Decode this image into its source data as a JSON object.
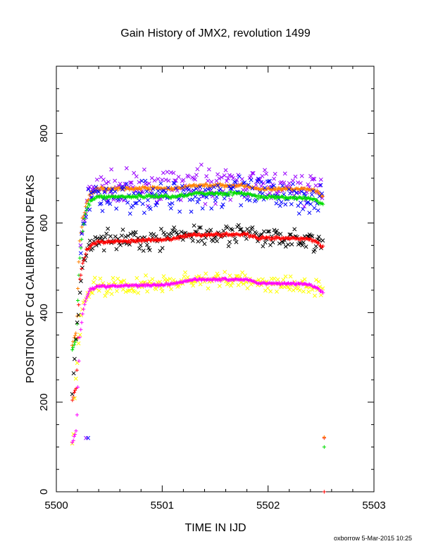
{
  "chart_data": {
    "type": "scatter",
    "title": "Gain History of JMX2, revolution 1499",
    "xlabel": "TIME IN IJD",
    "ylabel": "POSITION OF Cd CALIBRATION PEAKS",
    "xlim": [
      5500,
      5503
    ],
    "ylim": [
      0,
      950
    ],
    "xticks": [
      5500,
      5501,
      5502,
      5503
    ],
    "yticks": [
      0,
      200,
      400,
      600,
      800
    ],
    "grid": false,
    "legend": "none",
    "series": [
      {
        "color": "#9900ff",
        "marker": "x",
        "points": [
          [
            5500.23,
            560
          ],
          [
            5500.26,
            600
          ],
          [
            5500.3,
            650
          ],
          [
            5500.35,
            675
          ],
          [
            5500.5,
            680
          ],
          [
            5501.0,
            680
          ],
          [
            5501.2,
            685
          ],
          [
            5501.5,
            688
          ],
          [
            5501.8,
            686
          ],
          [
            5502.0,
            684
          ],
          [
            5502.3,
            680
          ],
          [
            5502.45,
            677
          ],
          [
            5502.52,
            665
          ]
        ],
        "scatter": 38
      },
      {
        "color": "#ff7f00",
        "marker": "+",
        "points": [
          [
            5500.15,
            330
          ],
          [
            5500.19,
            360
          ],
          [
            5500.22,
            560
          ],
          [
            5500.25,
            610
          ],
          [
            5500.28,
            640
          ],
          [
            5500.32,
            665
          ],
          [
            5500.38,
            676
          ],
          [
            5501.0,
            678
          ],
          [
            5501.1,
            675
          ],
          [
            5501.3,
            684
          ],
          [
            5501.8,
            684
          ],
          [
            5501.9,
            675
          ],
          [
            5502.35,
            676
          ],
          [
            5502.45,
            672
          ],
          [
            5502.52,
            660
          ]
        ],
        "scatter": 4
      },
      {
        "color": "#0000ff",
        "marker": "x",
        "points": [
          [
            5500.23,
            540
          ],
          [
            5500.26,
            590
          ],
          [
            5500.3,
            640
          ],
          [
            5500.35,
            660
          ],
          [
            5500.5,
            660
          ],
          [
            5501.0,
            660
          ],
          [
            5501.2,
            665
          ],
          [
            5501.5,
            668
          ],
          [
            5501.8,
            666
          ],
          [
            5502.0,
            664
          ],
          [
            5502.3,
            660
          ],
          [
            5502.45,
            654
          ],
          [
            5502.52,
            645
          ]
        ],
        "scatter": 40
      },
      {
        "color": "#00dd00",
        "marker": "+",
        "points": [
          [
            5500.15,
            315
          ],
          [
            5500.19,
            345
          ],
          [
            5500.22,
            520
          ],
          [
            5500.25,
            585
          ],
          [
            5500.28,
            625
          ],
          [
            5500.32,
            648
          ],
          [
            5500.38,
            658
          ],
          [
            5501.0,
            660
          ],
          [
            5501.1,
            658
          ],
          [
            5501.3,
            666
          ],
          [
            5501.8,
            666
          ],
          [
            5501.9,
            658
          ],
          [
            5502.35,
            656
          ],
          [
            5502.45,
            652
          ],
          [
            5502.52,
            640
          ]
        ],
        "scatter": 4
      },
      {
        "color": "#000000",
        "marker": "x",
        "points": [
          [
            5500.15,
            205
          ],
          [
            5500.2,
            380
          ],
          [
            5500.23,
            480
          ],
          [
            5500.26,
            520
          ],
          [
            5500.3,
            545
          ],
          [
            5500.35,
            560
          ],
          [
            5501.0,
            565
          ],
          [
            5501.2,
            575
          ],
          [
            5501.5,
            580
          ],
          [
            5501.8,
            575
          ],
          [
            5501.95,
            565
          ],
          [
            5502.3,
            565
          ],
          [
            5502.45,
            560
          ],
          [
            5502.52,
            548
          ]
        ],
        "scatter": 28
      },
      {
        "color": "#ff0000",
        "marker": "+",
        "points": [
          [
            5500.15,
            205
          ],
          [
            5500.19,
            235
          ],
          [
            5500.22,
            470
          ],
          [
            5500.25,
            510
          ],
          [
            5500.28,
            535
          ],
          [
            5500.32,
            550
          ],
          [
            5500.38,
            557
          ],
          [
            5501.0,
            563
          ],
          [
            5501.1,
            565
          ],
          [
            5501.3,
            574
          ],
          [
            5501.8,
            574
          ],
          [
            5501.9,
            566
          ],
          [
            5502.35,
            565
          ],
          [
            5502.45,
            560
          ],
          [
            5502.52,
            545
          ]
        ],
        "scatter": 4
      },
      {
        "color": "#ffff00",
        "marker": "x",
        "points": [
          [
            5500.15,
            105
          ],
          [
            5500.2,
            300
          ],
          [
            5500.23,
            380
          ],
          [
            5500.26,
            420
          ],
          [
            5500.3,
            445
          ],
          [
            5500.35,
            458
          ],
          [
            5501.0,
            462
          ],
          [
            5501.2,
            470
          ],
          [
            5501.5,
            474
          ],
          [
            5501.8,
            472
          ],
          [
            5501.95,
            464
          ],
          [
            5502.3,
            462
          ],
          [
            5502.45,
            458
          ],
          [
            5502.52,
            445
          ]
        ],
        "scatter": 22
      },
      {
        "color": "#ff00ff",
        "marker": "+",
        "points": [
          [
            5500.15,
            108
          ],
          [
            5500.19,
            140
          ],
          [
            5500.22,
            340
          ],
          [
            5500.25,
            400
          ],
          [
            5500.28,
            430
          ],
          [
            5500.32,
            452
          ],
          [
            5500.38,
            458
          ],
          [
            5501.0,
            462
          ],
          [
            5501.1,
            465
          ],
          [
            5501.3,
            474
          ],
          [
            5501.8,
            474
          ],
          [
            5501.9,
            466
          ],
          [
            5502.35,
            464
          ],
          [
            5502.45,
            458
          ],
          [
            5502.52,
            443
          ]
        ],
        "scatter": 3
      }
    ],
    "outliers": [
      {
        "color": "#9900ff",
        "marker": "x",
        "x": 5500.28,
        "y": 120
      },
      {
        "color": "#0000ff",
        "marker": "x",
        "x": 5500.3,
        "y": 120
      },
      {
        "color": "#ff0000",
        "marker": "+",
        "x": 5502.53,
        "y": 120
      },
      {
        "color": "#ff7f00",
        "marker": "+",
        "x": 5502.53,
        "y": 122
      },
      {
        "color": "#00dd00",
        "marker": "+",
        "x": 5502.53,
        "y": 100
      },
      {
        "color": "#ff0000",
        "marker": "+",
        "x": 5502.53,
        "y": 0
      }
    ]
  },
  "footer": "oxborrow  5-Mar-2015 10:25"
}
